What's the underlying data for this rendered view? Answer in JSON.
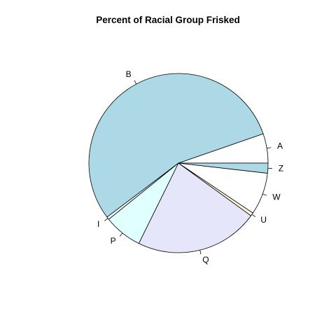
{
  "chart_data": {
    "type": "pie",
    "title": "Percent of Racial Group Frisked",
    "direction": "counterclockwise",
    "start_angle_deg": 0,
    "slices": [
      {
        "label": "A",
        "value": 5.3,
        "color": "#ffffff"
      },
      {
        "label": "B",
        "value": 55.0,
        "color": "#add8e6"
      },
      {
        "label": "I",
        "value": 0.5,
        "color": "#f0ffff"
      },
      {
        "label": "P",
        "value": 6.9,
        "color": "#e0ffff"
      },
      {
        "label": "Q",
        "value": 22.3,
        "color": "#e6e6fa"
      },
      {
        "label": "U",
        "value": 0.6,
        "color": "#fff8dc"
      },
      {
        "label": "W",
        "value": 7.6,
        "color": "#ffffff"
      },
      {
        "label": "Z",
        "value": 1.8,
        "color": "#add8e6"
      }
    ]
  }
}
